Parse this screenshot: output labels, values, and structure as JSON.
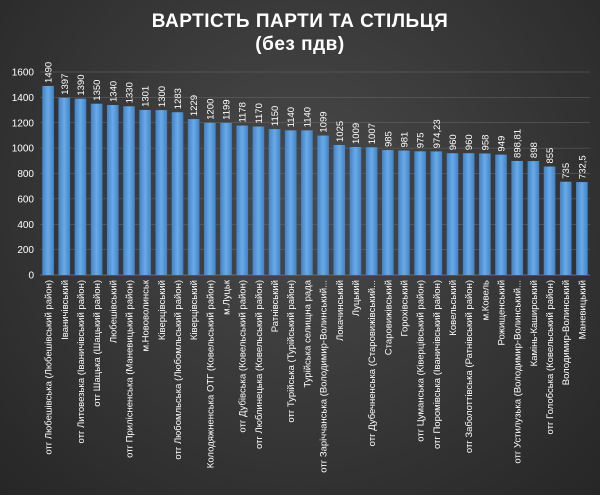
{
  "title_line1": "ВАРТІСТЬ ПАРТИ ТА СТІЛЬЦЯ",
  "title_line2": "(без пдв)",
  "colors": {
    "bar": "#5b9bd5",
    "bar_dark": "#2e6fb3",
    "grid": "#6a6a6a"
  },
  "chart_data": {
    "type": "bar",
    "ylim": [
      0,
      1600
    ],
    "yticks": [
      0,
      200,
      400,
      600,
      800,
      1000,
      1200,
      1400,
      1600
    ],
    "grid": true,
    "categories": [
      "отг Любешівська (Любешівський район)",
      "Іваничівський",
      "отг Литовезька (Іваничівський район)",
      "отг Шацька (Шацький район)",
      "Любешівський",
      "отг Прилісненська (Маневицький район)",
      "м.Нововолинськ",
      "Ківерцівський",
      "отг Любомльська (Любомльський район)",
      "Ківерцівський",
      "Колодяжненська ОТГ (Ковельський район)",
      "м.Луцьк",
      "отг Дубівська (Ковельський район)",
      "отг Люблинецька (Ковельський район)",
      "Ратнівський",
      "отг Турійська (Турійський район)",
      "Турійська селищна рада",
      "отг Заріччанська (Володимир-Волинський...",
      "Локачинський",
      "Луцький",
      "отг Дубечненська (Старовижівський...",
      "Старовижівський",
      "Горохівський",
      "отг Цуманська (Ківерцівський район)",
      "отг Поромівська (Іваничівський район)",
      "Ковельський",
      "отг Заболоттівська (Ратнівський район)",
      "м.Ковель",
      "Рожищенський",
      "отг Устилузька (Володимир-Волинський...",
      "Камінь-Каширський",
      "отг Голобська (Ковельський район)",
      "Володимир-Волинський",
      "Маневицький"
    ],
    "values": [
      1490,
      1397,
      1390,
      1350,
      1340,
      1330,
      1301,
      1300,
      1283,
      1229,
      1200,
      1199,
      1178,
      1170,
      1150,
      1140,
      1140,
      1099,
      1025,
      1009,
      1007,
      985,
      981,
      975,
      974.23,
      960,
      960,
      958,
      949,
      898.81,
      898,
      855,
      735,
      732.5
    ],
    "value_labels": [
      "1490",
      "1397",
      "1390",
      "1350",
      "1340",
      "1330",
      "1301",
      "1300",
      "1283",
      "1229",
      "1200",
      "1199",
      "1178",
      "1170",
      "1150",
      "1140",
      "1140",
      "1099",
      "1025",
      "1009",
      "1007",
      "985",
      "981",
      "975",
      "974,23",
      "960",
      "960",
      "958",
      "949",
      "898,81",
      "898",
      "855",
      "735",
      "732,5"
    ]
  }
}
